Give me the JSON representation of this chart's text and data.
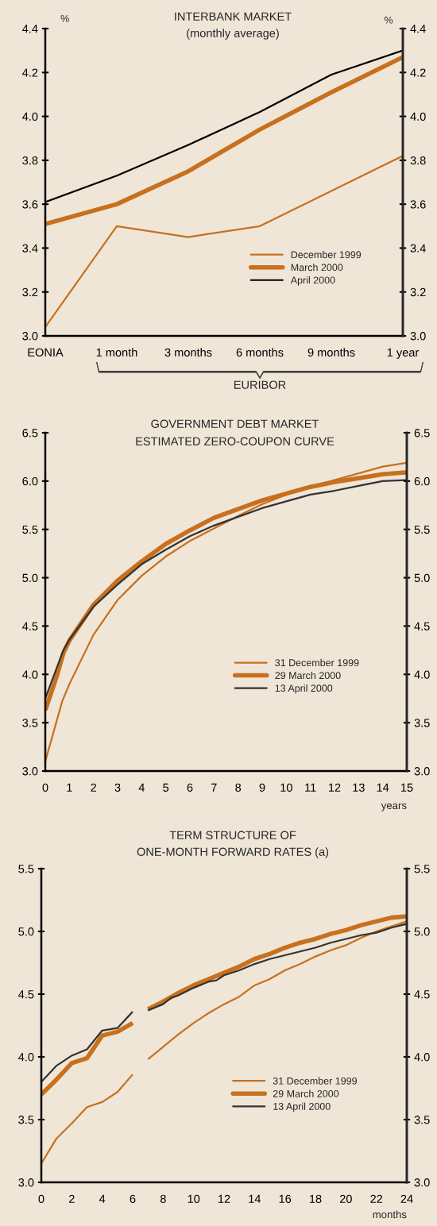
{
  "chart_data": [
    {
      "type": "line",
      "title": "INTERBANK MARKET",
      "subtitle": "(monthly average)",
      "ylabel": "%",
      "y2label": "%",
      "categories": [
        "EONIA",
        "1 month",
        "3 months",
        "6 months",
        "9 months",
        "1 year"
      ],
      "series": [
        {
          "name": "December 1999",
          "color": "#c8701e",
          "values": [
            3.04,
            3.5,
            3.45,
            3.5,
            3.66,
            3.82
          ]
        },
        {
          "name": "March 2000",
          "color": "#c8701e",
          "values": [
            3.51,
            3.6,
            3.75,
            3.94,
            4.11,
            4.27
          ]
        },
        {
          "name": "April 2000",
          "color": "#000000",
          "values": [
            3.61,
            3.73,
            3.87,
            4.02,
            4.19,
            4.3
          ]
        }
      ],
      "ylim": [
        3.0,
        4.4
      ],
      "yticks": [
        {
          "value": 3.0,
          "label": "3.0"
        },
        3.2,
        3.4,
        3.6,
        3.8,
        {
          "value": 4.0,
          "label": "4.0"
        },
        4.2,
        4.4
      ],
      "y2lim": [
        3.0,
        4.4
      ],
      "y2ticks": [
        {
          "value": 3.0,
          "label": "3.0"
        },
        3.2,
        3.4,
        3.6,
        3.8,
        {
          "value": 4.0,
          "label": "4.0"
        },
        4.2,
        4.4
      ],
      "annotations": [
        "EURIBOR"
      ],
      "legend": "center right",
      "grid": false,
      "line_style": "solid"
    },
    {
      "type": "line",
      "title": "GOVERNMENT DEBT MARKET",
      "subtitle": "ESTIMATED ZERO-COUPON CURVE",
      "xlabel": "years",
      "series": [
        {
          "name": "31 December 1999",
          "color": "#c8701e",
          "x": [
            0,
            0.7,
            1,
            2,
            3,
            4,
            5,
            6,
            7,
            8,
            9,
            10,
            11,
            12,
            13,
            14,
            15
          ],
          "values": [
            3.1,
            3.72,
            3.9,
            4.41,
            4.77,
            5.02,
            5.22,
            5.38,
            5.51,
            5.64,
            5.76,
            5.86,
            5.94,
            6.01,
            6.08,
            6.15,
            6.19
          ]
        },
        {
          "name": "29 March 2000",
          "color": "#c8701e",
          "x": [
            0,
            0.5,
            0.75,
            1,
            2,
            3,
            4,
            5,
            6,
            7,
            8,
            9,
            10,
            11,
            12,
            13,
            14,
            15
          ],
          "values": [
            3.63,
            4.0,
            4.22,
            4.35,
            4.72,
            4.97,
            5.17,
            5.35,
            5.49,
            5.62,
            5.71,
            5.8,
            5.87,
            5.94,
            5.99,
            6.03,
            6.07,
            6.09
          ]
        },
        {
          "name": "13 April 2000",
          "color": "#333333",
          "x": [
            0,
            0.75,
            1,
            2,
            3,
            4,
            5,
            6,
            7,
            8,
            9,
            10,
            11,
            12,
            13,
            14,
            15
          ],
          "values": [
            3.75,
            4.25,
            4.36,
            4.7,
            4.93,
            5.14,
            5.29,
            5.43,
            5.54,
            5.63,
            5.72,
            5.79,
            5.86,
            5.9,
            5.95,
            6.0,
            6.01
          ]
        }
      ],
      "xlim": [
        0,
        15
      ],
      "xticks": [
        0,
        1,
        2,
        3,
        4,
        5,
        6,
        7,
        8,
        9,
        10,
        11,
        12,
        13,
        14,
        15
      ],
      "ylim": [
        3.0,
        6.5
      ],
      "yticks": [
        {
          "value": 3.0,
          "label": "3.0"
        },
        3.5,
        {
          "value": 4.0,
          "label": "4.0"
        },
        4.5,
        {
          "value": 5.0,
          "label": "5.0"
        },
        5.5,
        {
          "value": 6.0,
          "label": "6.0"
        },
        6.5
      ],
      "y2lim": [
        3.0,
        6.5
      ],
      "y2ticks": [
        {
          "value": 3.0,
          "label": "3.0"
        },
        3.5,
        {
          "value": 4.0,
          "label": "4.0"
        },
        4.5,
        {
          "value": 5.0,
          "label": "5.0"
        },
        5.5,
        {
          "value": 6.0,
          "label": "6.0"
        },
        6.5
      ],
      "legend": "bottom right",
      "grid": false,
      "line_style": "solid"
    },
    {
      "type": "line",
      "title": "TERM STRUCTURE OF",
      "subtitle": "ONE-MONTH FORWARD RATES (a)",
      "xlabel": "months",
      "series": [
        {
          "name": "31 December 1999",
          "color": "#c8701e",
          "x": [
            0,
            1,
            2,
            3,
            4,
            5,
            6,
            6.5,
            7,
            8,
            9,
            10,
            11,
            12,
            13,
            14,
            15,
            16,
            17,
            18,
            19,
            20,
            21,
            22,
            23,
            24
          ],
          "values": [
            3.15,
            3.35,
            3.47,
            3.6,
            3.64,
            3.72,
            3.86,
            null,
            3.98,
            4.08,
            4.18,
            4.27,
            4.35,
            4.42,
            4.48,
            4.57,
            4.62,
            4.69,
            4.74,
            4.8,
            4.85,
            4.89,
            4.95,
            5.0,
            5.04,
            5.08
          ]
        },
        {
          "name": "29 March 2000",
          "color": "#c8701e",
          "x": [
            0,
            1,
            2,
            3,
            4,
            5,
            6,
            6.5,
            7,
            8,
            9,
            10,
            11,
            12,
            13,
            14,
            15,
            16,
            17,
            18,
            19,
            20,
            21,
            22,
            23,
            24
          ],
          "values": [
            3.7,
            3.82,
            3.95,
            3.99,
            4.17,
            4.2,
            4.27,
            null,
            4.38,
            4.44,
            4.51,
            4.57,
            4.62,
            4.67,
            4.72,
            4.78,
            4.82,
            4.87,
            4.91,
            4.94,
            4.98,
            5.01,
            5.05,
            5.08,
            5.11,
            5.12
          ]
        },
        {
          "name": "13 April 2000",
          "color": "#333333",
          "x": [
            0,
            1,
            2,
            3,
            4,
            5,
            6,
            6.5,
            7,
            8,
            8.5,
            9,
            10,
            11,
            11.5,
            12,
            13,
            14,
            15,
            16,
            17,
            18,
            19,
            20,
            21,
            22,
            23,
            24
          ],
          "values": [
            3.8,
            3.93,
            4.01,
            4.06,
            4.21,
            4.23,
            4.36,
            null,
            4.37,
            4.42,
            4.47,
            4.49,
            4.55,
            4.6,
            4.61,
            4.65,
            4.69,
            4.74,
            4.78,
            4.81,
            4.84,
            4.87,
            4.91,
            4.94,
            4.97,
            4.99,
            5.03,
            5.06
          ]
        }
      ],
      "xlim": [
        0,
        24
      ],
      "xticks": [
        0,
        2,
        4,
        6,
        8,
        10,
        12,
        14,
        16,
        18,
        20,
        22,
        24
      ],
      "ylim": [
        3.0,
        5.5
      ],
      "yticks": [
        {
          "value": 3.0,
          "label": "3.0"
        },
        3.5,
        {
          "value": 4.0,
          "label": "4.0"
        },
        4.5,
        {
          "value": 5.0,
          "label": "5.0"
        },
        5.5
      ],
      "y2lim": [
        3.0,
        5.5
      ],
      "y2ticks": [
        {
          "value": 3.0,
          "label": "3.0"
        },
        3.5,
        {
          "value": 4.0,
          "label": "4.0"
        },
        4.5,
        {
          "value": 5.0,
          "label": "5.0"
        },
        5.5
      ],
      "legend": "bottom right",
      "grid": false,
      "line_style": "solid"
    }
  ]
}
